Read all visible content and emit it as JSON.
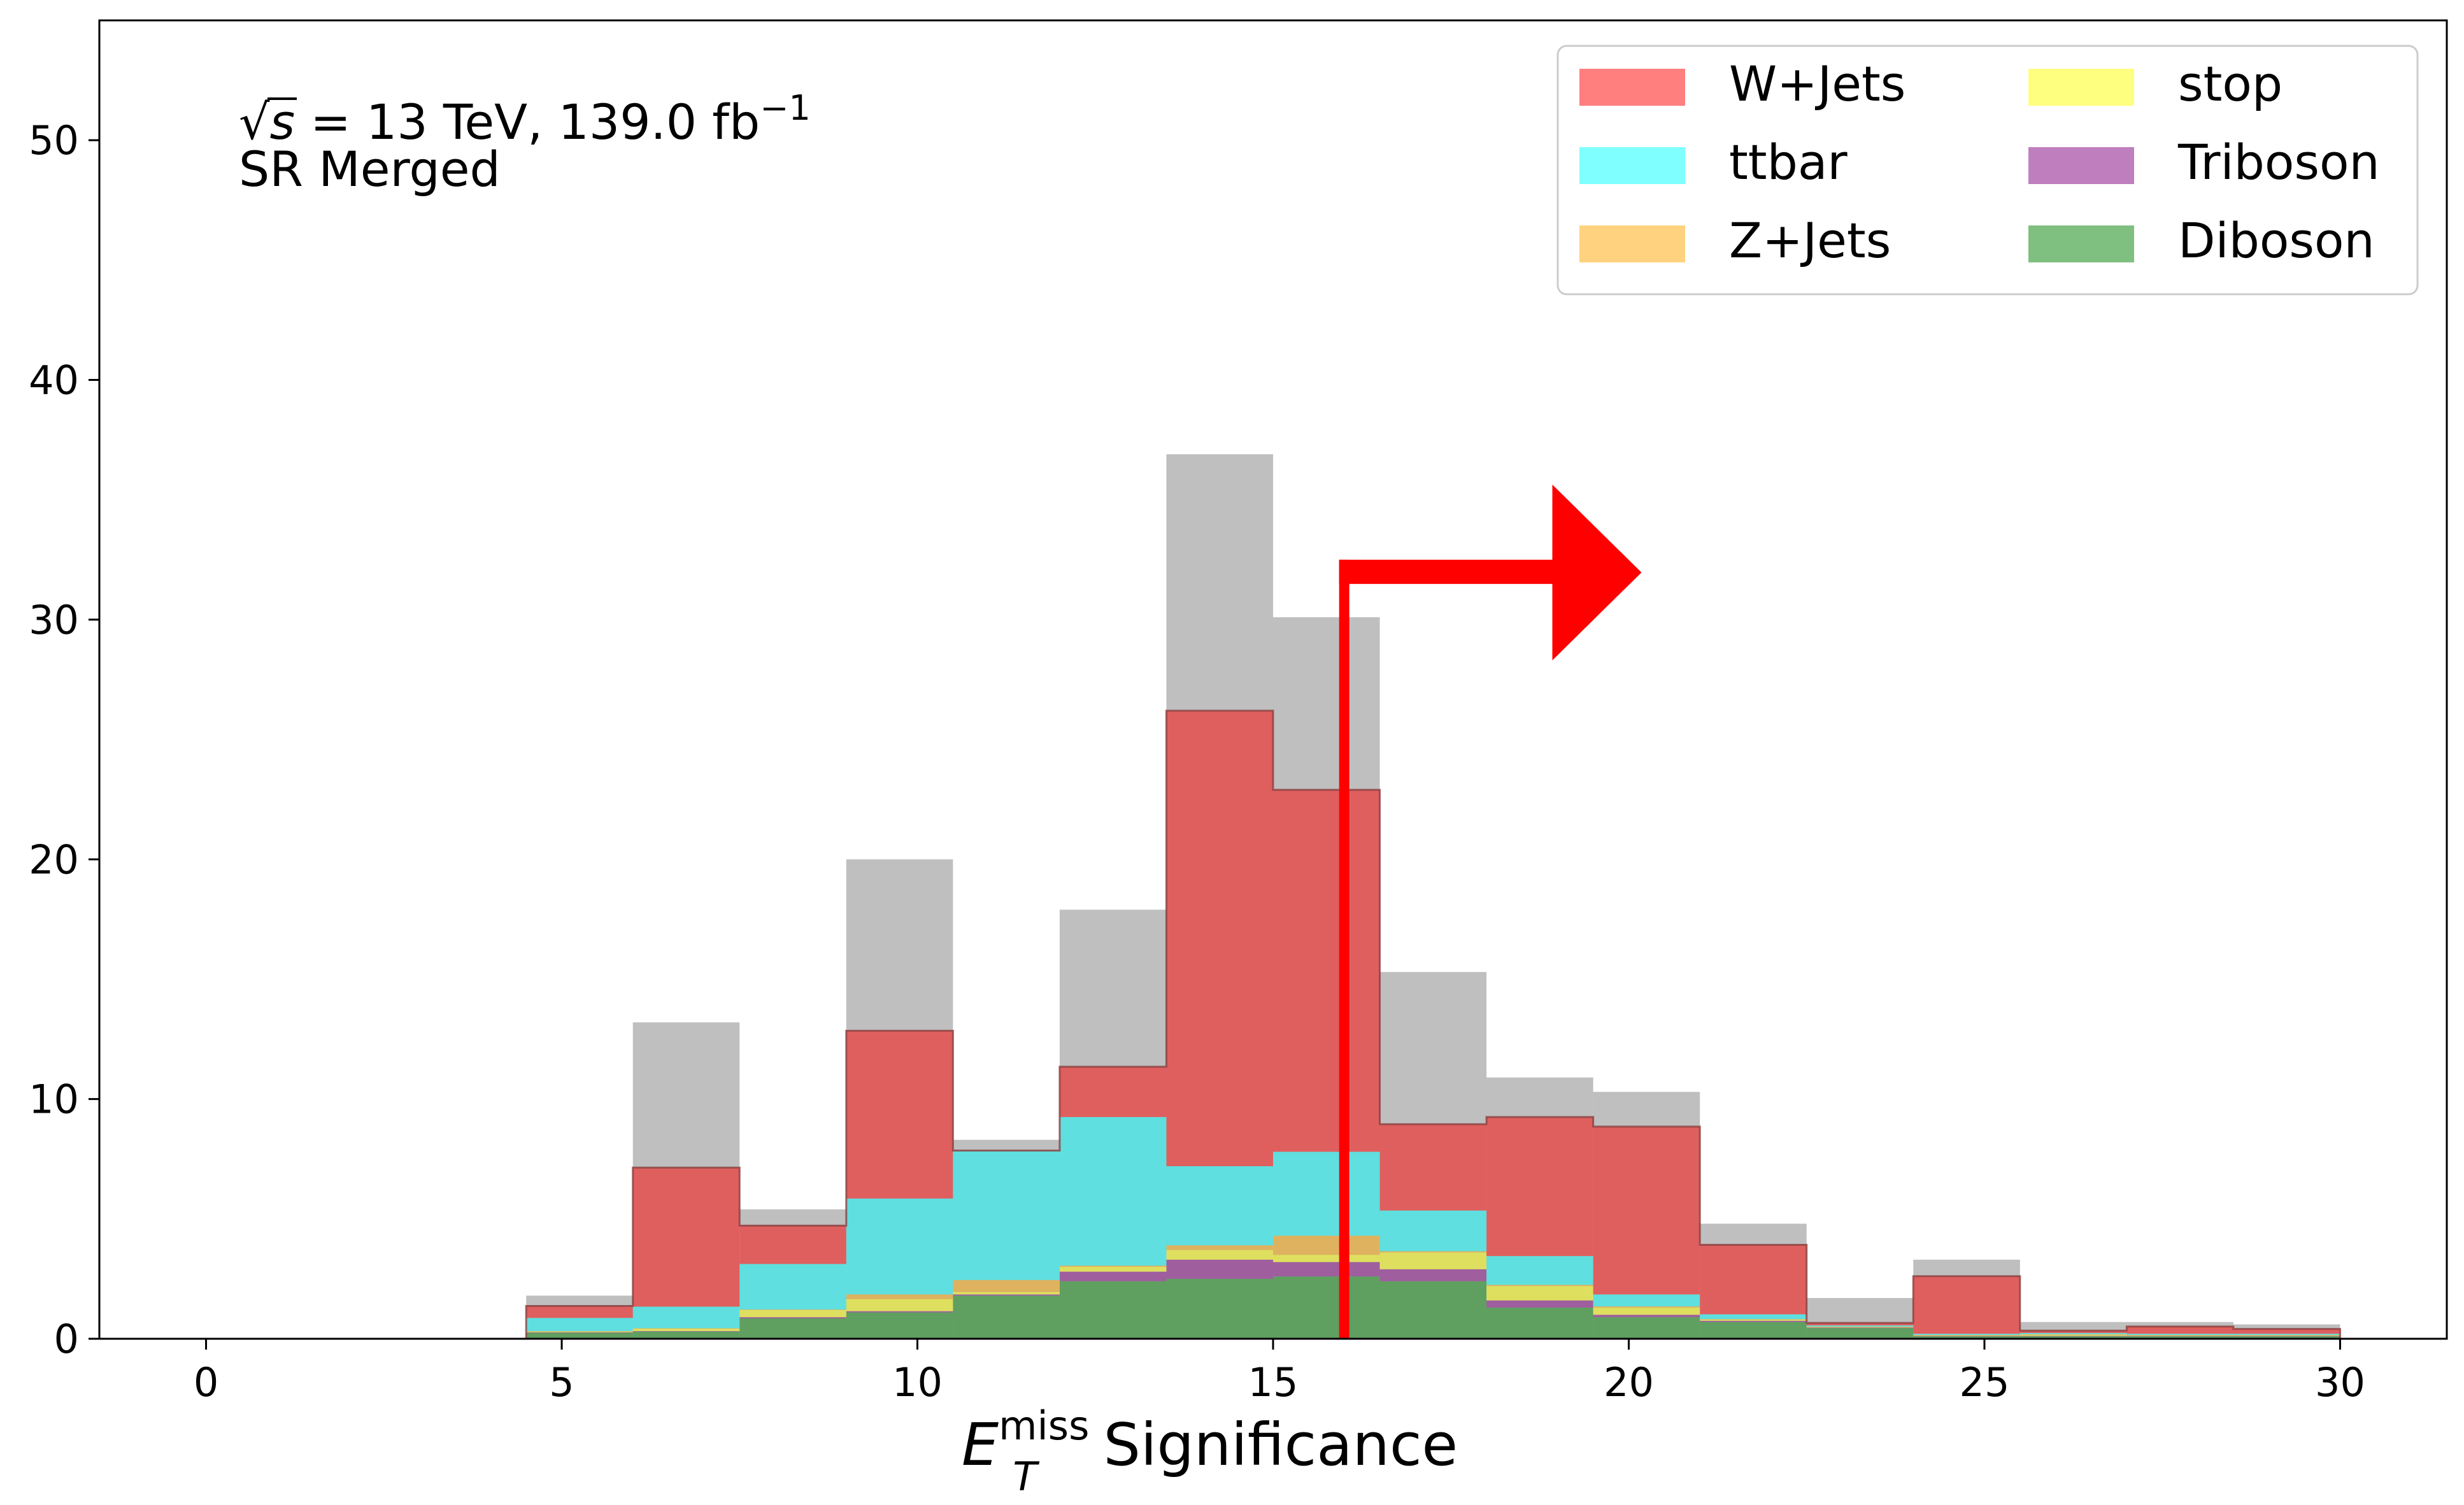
{
  "chart_data": {
    "type": "bar",
    "xlabel": {
      "symbol": "E",
      "sub": "T",
      "sup": "miss",
      "rest": " Significance"
    },
    "ylabel": "",
    "xlim": [
      -1.5,
      31.5
    ],
    "ylim": [
      0,
      55
    ],
    "xticks": [
      "0",
      "5",
      "10",
      "15",
      "20",
      "25",
      "30"
    ],
    "yticks": [
      "0",
      "10",
      "20",
      "30",
      "40",
      "50"
    ],
    "annotation": {
      "line1_sqrt": "s",
      "line1_rest": " = 13 TeV, 139.0 fb",
      "line1_sup": "−1",
      "line2": "SR Merged"
    },
    "legend_position": "top-right",
    "bin_edges": [
      4.5,
      6,
      7.5,
      9,
      10.5,
      12,
      13.5,
      15,
      16.5,
      18,
      19.5,
      21,
      22.5,
      24,
      25.5,
      27,
      28.5,
      30
    ],
    "series": [
      {
        "name": "Diboson",
        "color": "#008000",
        "values": [
          0.25,
          0.3,
          0.85,
          1.1,
          1.8,
          2.4,
          2.5,
          2.6,
          2.4,
          1.3,
          0.9,
          0.7,
          0.45,
          0.1,
          0.1,
          0.1,
          0.1
        ]
      },
      {
        "name": "Triboson",
        "color": "#800080",
        "values": [
          0.02,
          0.02,
          0.05,
          0.05,
          0.05,
          0.4,
          0.8,
          0.6,
          0.5,
          0.3,
          0.1,
          0.05,
          0.02,
          0.02,
          0.02,
          0.02,
          0.02
        ]
      },
      {
        "name": "stop",
        "color": "#ffff00",
        "values": [
          0.03,
          0.1,
          0.3,
          0.5,
          0.1,
          0.2,
          0.4,
          0.3,
          0.7,
          0.6,
          0.3,
          0.05,
          0.02,
          0.02,
          0.05,
          0.02,
          0.02
        ]
      },
      {
        "name": "Z+Jets",
        "color": "#ffa500",
        "values": [
          0.02,
          0.02,
          0.02,
          0.2,
          0.5,
          0.05,
          0.2,
          0.8,
          0.05,
          0.05,
          0.05,
          0.02,
          0.02,
          0.02,
          0.02,
          0.02,
          0.02
        ]
      },
      {
        "name": "ttbar",
        "color": "#00ffff",
        "values": [
          0.55,
          0.9,
          1.9,
          4.0,
          5.4,
          6.2,
          3.3,
          3.5,
          1.7,
          1.2,
          0.5,
          0.2,
          0.05,
          0.05,
          0.05,
          0.05,
          0.05
        ]
      },
      {
        "name": "W+Jets",
        "color": "#ff0000",
        "values": [
          0.5,
          5.8,
          1.6,
          7.0,
          0.0,
          2.1,
          19.0,
          15.1,
          3.6,
          5.8,
          7.0,
          2.9,
          0.1,
          2.4,
          0.1,
          0.3,
          0.2
        ]
      }
    ],
    "data_totals": [
      1.8,
      13.2,
      5.4,
      20.0,
      8.3,
      17.9,
      36.9,
      30.1,
      15.3,
      10.9,
      10.3,
      4.8,
      1.7,
      3.3,
      0.7,
      0.7,
      0.6
    ],
    "data_color": "#808080",
    "cut": {
      "x": 16,
      "arrow_to": 20,
      "height": 32.5,
      "color": "#ff0000"
    }
  }
}
